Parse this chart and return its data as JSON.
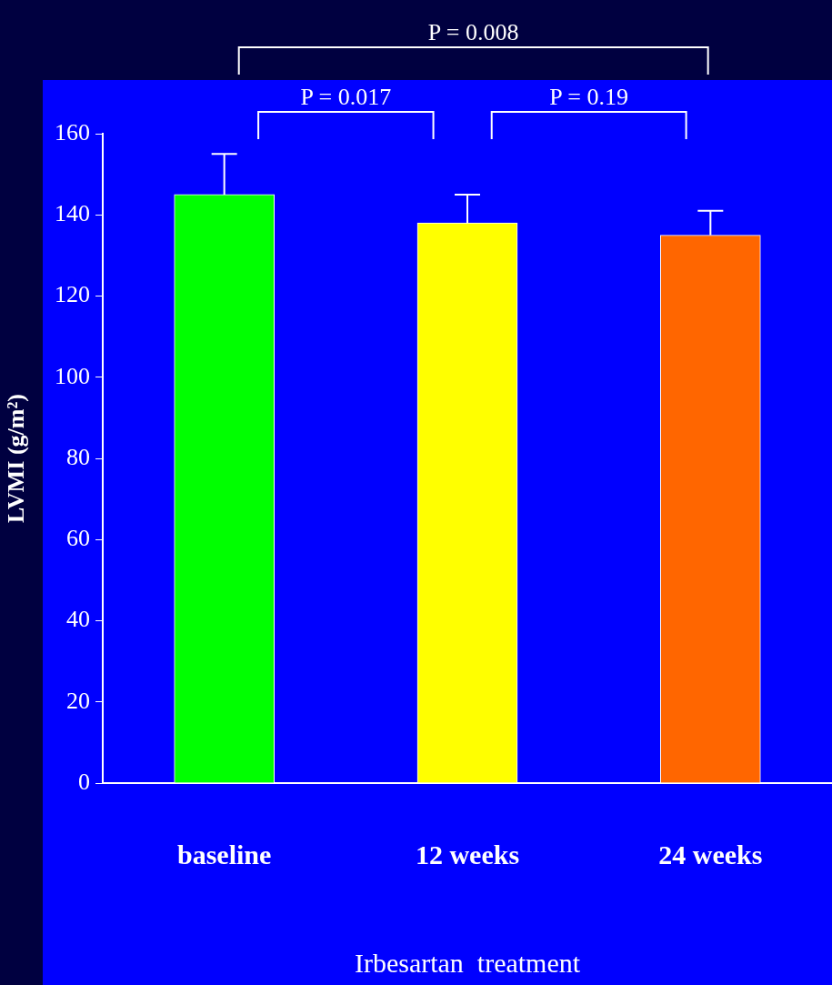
{
  "chart_data": {
    "type": "bar",
    "categories": [
      "baseline",
      "12 weeks",
      "24 weeks"
    ],
    "values": [
      145,
      138,
      135
    ],
    "colors": [
      "#00ff00",
      "#ffff00",
      "#ff6600"
    ],
    "errors": [
      [
        145,
        155
      ],
      [
        138,
        145
      ],
      [
        135,
        141
      ]
    ],
    "xlabel": "Irbesartan  treatment",
    "ylabel": "LVMI (g/m²)",
    "ylim": [
      0,
      160
    ],
    "yticks": [
      0,
      20,
      40,
      60,
      80,
      100,
      120,
      140,
      160
    ],
    "annotations": [
      "P = 0.008",
      "P = 0.017",
      "P = 0.19"
    ],
    "grid": false,
    "legend": false
  }
}
